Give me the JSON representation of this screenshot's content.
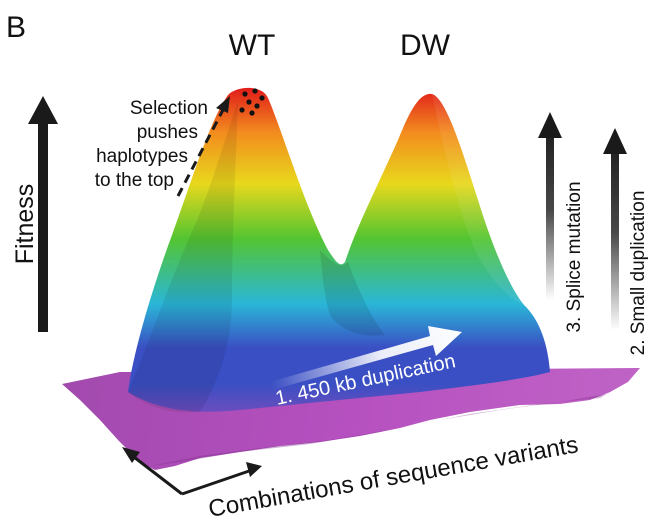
{
  "panel_letter": "B",
  "peaks": {
    "left_label": "WT",
    "right_label": "DW"
  },
  "y_axis_label": "Fitness",
  "x_axis_label": "Combinations of sequence variants",
  "selection_note": [
    "Selection",
    "pushes",
    "haplotypes",
    "to the top"
  ],
  "mutations": [
    {
      "label": "1. 450 kb duplication"
    },
    {
      "label": "2. Small duplication"
    },
    {
      "label": "3. Splice mutation"
    }
  ],
  "colors": {
    "peak_top": "#e0151a",
    "orange": "#f28c1e",
    "yellow": "#e8d81c",
    "green": "#54c531",
    "cyan": "#2ab6d8",
    "blue": "#3a4fc3",
    "base": "#b04ab8",
    "arrow_dark": "#1a1a1a",
    "arrow_light": "#ffffff"
  }
}
